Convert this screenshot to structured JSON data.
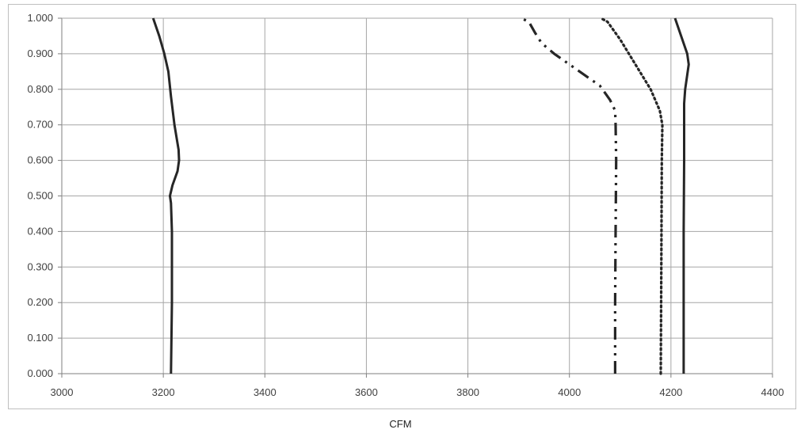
{
  "chart_data": {
    "type": "line",
    "xlabel": "CFM",
    "ylabel": "",
    "xlim": [
      3000,
      4400
    ],
    "ylim": [
      0,
      1
    ],
    "x_ticks": [
      "3000",
      "3200",
      "3400",
      "3600",
      "3800",
      "4000",
      "4200",
      "4400"
    ],
    "y_ticks": [
      "0.000",
      "0.100",
      "0.200",
      "0.300",
      "0.400",
      "0.500",
      "0.600",
      "0.700",
      "0.800",
      "0.900",
      "1.000"
    ],
    "grid": true,
    "legend": "none",
    "colors": {
      "line": "#262626",
      "grid": "#a6a6a6",
      "axis": "#7f7f7f"
    },
    "series": [
      {
        "style": "solid",
        "points": [
          [
            3215,
            0.0
          ],
          [
            3216,
            0.1
          ],
          [
            3217,
            0.2
          ],
          [
            3217,
            0.3
          ],
          [
            3217,
            0.4
          ],
          [
            3215,
            0.48
          ],
          [
            3213,
            0.5
          ],
          [
            3218,
            0.53
          ],
          [
            3228,
            0.57
          ],
          [
            3231,
            0.6
          ],
          [
            3230,
            0.63
          ],
          [
            3222,
            0.7
          ],
          [
            3215,
            0.78
          ],
          [
            3210,
            0.85
          ],
          [
            3202,
            0.9
          ],
          [
            3192,
            0.95
          ],
          [
            3180,
            1.0
          ]
        ]
      },
      {
        "style": "dash-dot-dot",
        "points": [
          [
            4090,
            0.0
          ],
          [
            4090,
            0.2
          ],
          [
            4091,
            0.4
          ],
          [
            4092,
            0.6
          ],
          [
            4091,
            0.7
          ],
          [
            4090,
            0.74
          ],
          [
            4080,
            0.77
          ],
          [
            4060,
            0.81
          ],
          [
            4030,
            0.84
          ],
          [
            4000,
            0.87
          ],
          [
            3970,
            0.9
          ],
          [
            3945,
            0.93
          ],
          [
            3932,
            0.96
          ],
          [
            3920,
            0.99
          ],
          [
            3905,
            1.0
          ]
        ]
      },
      {
        "style": "dotted",
        "points": [
          [
            4180,
            0.0
          ],
          [
            4181,
            0.3
          ],
          [
            4182,
            0.6
          ],
          [
            4183,
            0.7
          ],
          [
            4178,
            0.74
          ],
          [
            4160,
            0.8
          ],
          [
            4130,
            0.87
          ],
          [
            4100,
            0.94
          ],
          [
            4075,
            0.99
          ],
          [
            4062,
            1.0
          ]
        ]
      },
      {
        "style": "solid",
        "points": [
          [
            4225,
            0.0
          ],
          [
            4225,
            0.2
          ],
          [
            4225,
            0.4
          ],
          [
            4226,
            0.6
          ],
          [
            4226,
            0.76
          ],
          [
            4228,
            0.8
          ],
          [
            4235,
            0.87
          ],
          [
            4232,
            0.9
          ],
          [
            4220,
            0.95
          ],
          [
            4208,
            1.0
          ]
        ]
      }
    ]
  }
}
